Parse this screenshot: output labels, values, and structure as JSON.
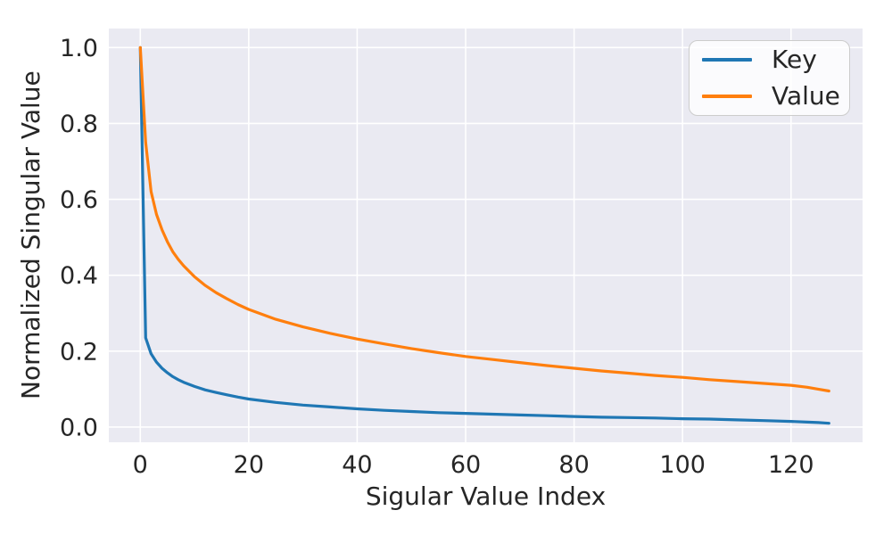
{
  "figure": {
    "background_color": "#ffffff"
  },
  "chart_data": {
    "type": "line",
    "title": "",
    "xlabel": "Sigular Value Index",
    "ylabel": "Normalized Singular Value",
    "xlim": [
      -5.8,
      133.2
    ],
    "ylim": [
      -0.04,
      1.05
    ],
    "grid": true,
    "legend_position": "upper right",
    "plot_background_color": "#eaeaf2",
    "grid_color": "#ffffff",
    "text_color": "#262626",
    "legend_border_color": "#cccccc",
    "x_ticks": {
      "values": [
        0,
        20,
        40,
        60,
        80,
        100,
        120
      ],
      "labels": [
        "0",
        "20",
        "40",
        "60",
        "80",
        "100",
        "120"
      ]
    },
    "y_ticks": {
      "values": [
        0.0,
        0.2,
        0.4,
        0.6,
        0.8,
        1.0
      ],
      "labels": [
        "0.0",
        "0.2",
        "0.4",
        "0.6",
        "0.8",
        "1.0"
      ]
    },
    "series": [
      {
        "name": "Key",
        "color": "#1f77b4",
        "points": [
          [
            0,
            1.0
          ],
          [
            1,
            0.235
          ],
          [
            2,
            0.193
          ],
          [
            3,
            0.171
          ],
          [
            4,
            0.155
          ],
          [
            5,
            0.143
          ],
          [
            6,
            0.133
          ],
          [
            7,
            0.125
          ],
          [
            8,
            0.118
          ],
          [
            10,
            0.107
          ],
          [
            12,
            0.098
          ],
          [
            14,
            0.091
          ],
          [
            16,
            0.085
          ],
          [
            18,
            0.079
          ],
          [
            20,
            0.074
          ],
          [
            25,
            0.065
          ],
          [
            30,
            0.058
          ],
          [
            35,
            0.053
          ],
          [
            40,
            0.048
          ],
          [
            45,
            0.044
          ],
          [
            50,
            0.041
          ],
          [
            55,
            0.038
          ],
          [
            60,
            0.036
          ],
          [
            65,
            0.034
          ],
          [
            70,
            0.032
          ],
          [
            75,
            0.03
          ],
          [
            80,
            0.028
          ],
          [
            85,
            0.026
          ],
          [
            90,
            0.025
          ],
          [
            95,
            0.024
          ],
          [
            100,
            0.022
          ],
          [
            105,
            0.021
          ],
          [
            110,
            0.019
          ],
          [
            115,
            0.017
          ],
          [
            120,
            0.015
          ],
          [
            123,
            0.013
          ],
          [
            125,
            0.012
          ],
          [
            127,
            0.01
          ]
        ]
      },
      {
        "name": "Value",
        "color": "#ff7f0e",
        "points": [
          [
            0,
            1.0
          ],
          [
            1,
            0.75
          ],
          [
            2,
            0.62
          ],
          [
            3,
            0.56
          ],
          [
            4,
            0.52
          ],
          [
            5,
            0.488
          ],
          [
            6,
            0.462
          ],
          [
            7,
            0.442
          ],
          [
            8,
            0.425
          ],
          [
            10,
            0.396
          ],
          [
            12,
            0.373
          ],
          [
            14,
            0.354
          ],
          [
            16,
            0.338
          ],
          [
            18,
            0.323
          ],
          [
            20,
            0.31
          ],
          [
            25,
            0.284
          ],
          [
            30,
            0.264
          ],
          [
            35,
            0.247
          ],
          [
            40,
            0.232
          ],
          [
            45,
            0.219
          ],
          [
            50,
            0.207
          ],
          [
            55,
            0.196
          ],
          [
            60,
            0.186
          ],
          [
            65,
            0.178
          ],
          [
            70,
            0.17
          ],
          [
            75,
            0.162
          ],
          [
            80,
            0.155
          ],
          [
            85,
            0.148
          ],
          [
            90,
            0.142
          ],
          [
            95,
            0.136
          ],
          [
            100,
            0.131
          ],
          [
            105,
            0.125
          ],
          [
            110,
            0.12
          ],
          [
            115,
            0.115
          ],
          [
            120,
            0.11
          ],
          [
            123,
            0.105
          ],
          [
            125,
            0.1
          ],
          [
            127,
            0.095
          ]
        ]
      }
    ]
  }
}
